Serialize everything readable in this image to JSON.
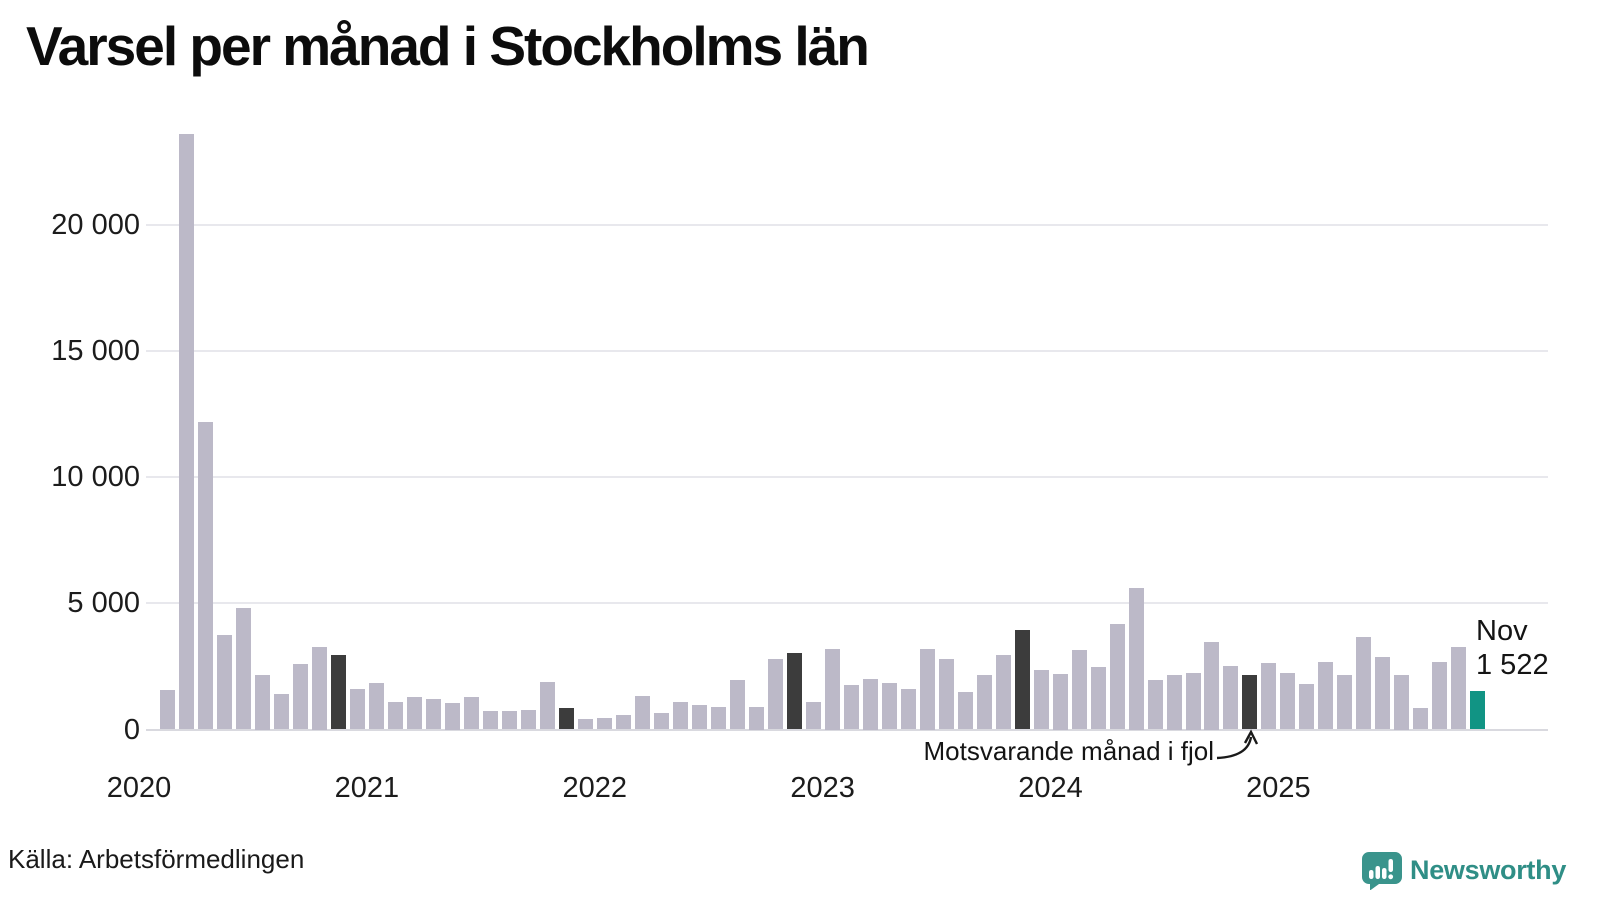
{
  "title": "Varsel per månad i Stockholms län",
  "source": "Källa: Arbetsförmedlingen",
  "branding": {
    "name": "Newsworthy",
    "icon": "speech-bubble-bar-chart-icon"
  },
  "annotation": {
    "text": "Motsvarande månad i fjol",
    "points_to": "2024-11"
  },
  "last_point_label": {
    "month": "Nov",
    "value": "1 522"
  },
  "colors": {
    "bar": "#bcb9c8",
    "bar_dark": "#3c3c3c",
    "bar_current": "#119484",
    "gridline": "#e8e8ed",
    "brand_teal": "#2f8e86"
  },
  "chart_data": {
    "type": "bar",
    "title": "Varsel per månad i Stockholms län",
    "xlabel": "",
    "ylabel": "",
    "ylim": [
      0,
      24000
    ],
    "grid": "horizontal",
    "yticks": [
      0,
      5000,
      10000,
      15000,
      20000
    ],
    "ytick_labels": [
      "0",
      "5 000",
      "10 000",
      "15 000",
      "20 000"
    ],
    "year_labels": [
      "2020",
      "2021",
      "2022",
      "2023",
      "2024",
      "2025"
    ],
    "categories": [
      "2020-02",
      "2020-03",
      "2020-04",
      "2020-05",
      "2020-06",
      "2020-07",
      "2020-08",
      "2020-09",
      "2020-10",
      "2020-11",
      "2020-12",
      "2021-01",
      "2021-02",
      "2021-03",
      "2021-04",
      "2021-05",
      "2021-06",
      "2021-07",
      "2021-08",
      "2021-09",
      "2021-10",
      "2021-11",
      "2021-12",
      "2022-01",
      "2022-02",
      "2022-03",
      "2022-04",
      "2022-05",
      "2022-06",
      "2022-07",
      "2022-08",
      "2022-09",
      "2022-10",
      "2022-11",
      "2022-12",
      "2023-01",
      "2023-02",
      "2023-03",
      "2023-04",
      "2023-05",
      "2023-06",
      "2023-07",
      "2023-08",
      "2023-09",
      "2023-10",
      "2023-11",
      "2023-12",
      "2024-01",
      "2024-02",
      "2024-03",
      "2024-04",
      "2024-05",
      "2024-06",
      "2024-07",
      "2024-08",
      "2024-09",
      "2024-10",
      "2024-11",
      "2024-12",
      "2025-01",
      "2025-02",
      "2025-03",
      "2025-04",
      "2025-05",
      "2025-06",
      "2025-07",
      "2025-08",
      "2025-09",
      "2025-10",
      "2025-11"
    ],
    "values": [
      1560,
      23600,
      12200,
      3760,
      4810,
      2180,
      1420,
      2580,
      3290,
      2940,
      1610,
      1840,
      1100,
      1280,
      1200,
      1050,
      1280,
      740,
      740,
      790,
      1870,
      860,
      430,
      460,
      560,
      1340,
      670,
      1100,
      980,
      880,
      1950,
      890,
      2780,
      3040,
      1080,
      3210,
      1760,
      2020,
      1850,
      1600,
      3190,
      2780,
      1490,
      2150,
      2960,
      3930,
      2370,
      2220,
      3160,
      2490,
      4180,
      5630,
      1950,
      2180,
      2240,
      3490,
      2510,
      2170,
      2650,
      2230,
      1790,
      2660,
      2150,
      3650,
      2890,
      2160,
      870,
      2670,
      3280,
      1522
    ],
    "highlight_dark_months": [
      "2020-11",
      "2021-11",
      "2022-11",
      "2023-11",
      "2024-11"
    ],
    "highlight_current_month": "2025-11",
    "legend": "none"
  }
}
